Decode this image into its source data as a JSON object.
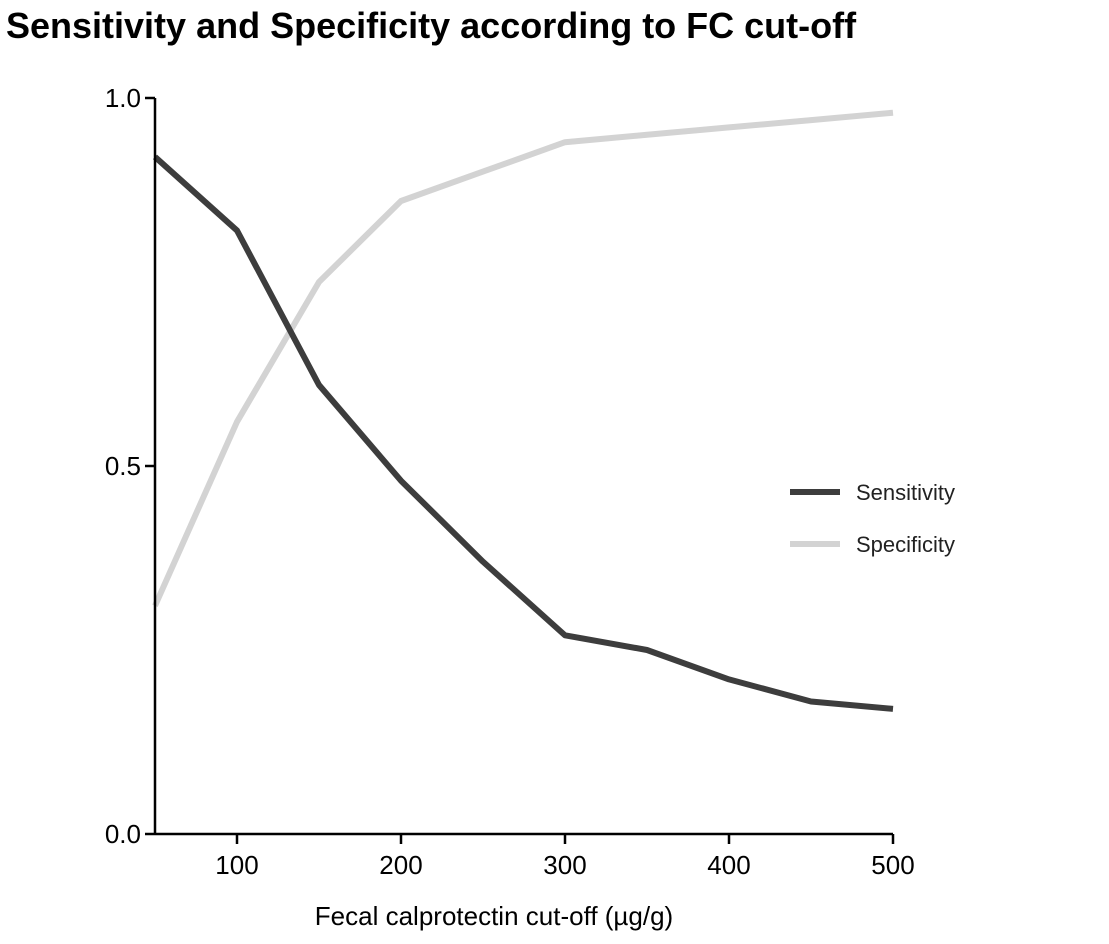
{
  "chart_data": {
    "type": "line",
    "title": "Sensitivity and Specificity according to FC cut-off",
    "xlabel": "Fecal calprotectin cut-off (µg/g)",
    "ylabel": "",
    "xlim": [
      50,
      500
    ],
    "ylim": [
      0.0,
      1.0
    ],
    "x_ticks": [
      {
        "value": 100,
        "label": "100"
      },
      {
        "value": 200,
        "label": "200"
      },
      {
        "value": 300,
        "label": "300"
      },
      {
        "value": 400,
        "label": "400"
      },
      {
        "value": 500,
        "label": "500"
      }
    ],
    "y_ticks": [
      {
        "value": 0.0,
        "label": "0.0"
      },
      {
        "value": 0.5,
        "label": "0.5"
      },
      {
        "value": 1.0,
        "label": "1.0"
      }
    ],
    "grid": false,
    "legend_position": "right",
    "x": [
      50,
      100,
      150,
      200,
      250,
      300,
      350,
      400,
      450,
      500
    ],
    "series": [
      {
        "name": "Sensitivity",
        "color": "#3d3d3d",
        "values": [
          0.92,
          0.82,
          0.61,
          0.48,
          0.37,
          0.27,
          0.25,
          0.21,
          0.18,
          0.17
        ]
      },
      {
        "name": "Specificity",
        "color": "#d3d3d3",
        "values": [
          0.31,
          0.56,
          0.75,
          0.86,
          0.9,
          0.94,
          0.95,
          0.96,
          0.97,
          0.98
        ]
      }
    ]
  }
}
